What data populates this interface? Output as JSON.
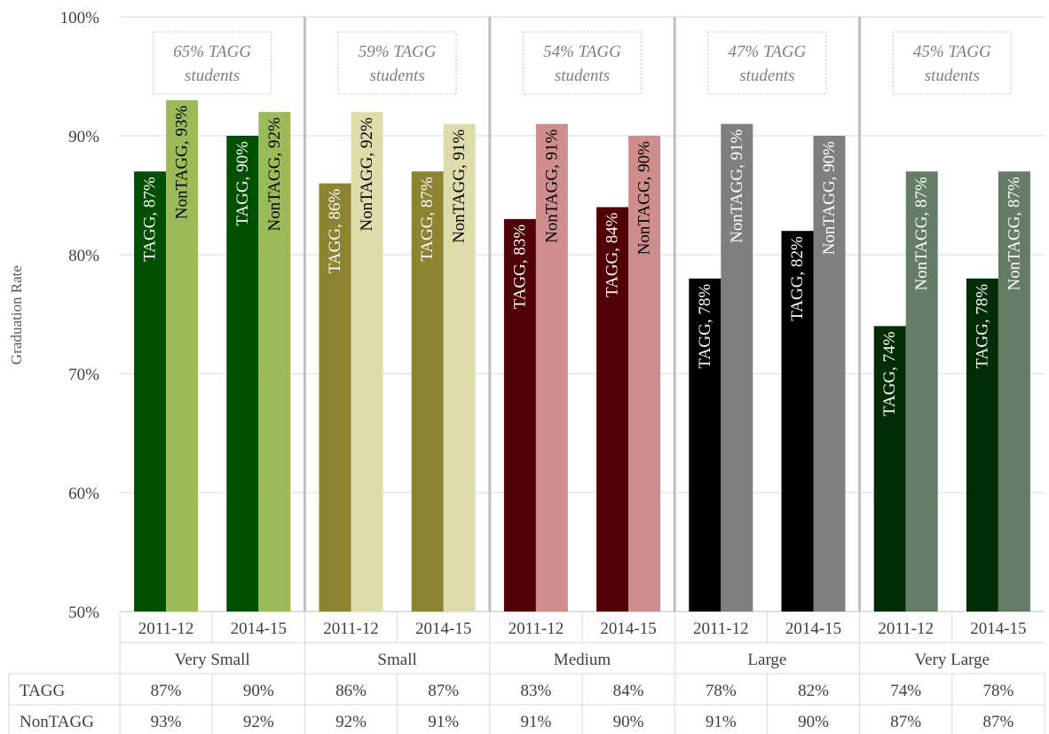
{
  "chart_data": {
    "type": "bar",
    "ylabel": "Graduation Rate",
    "ylim": [
      50,
      100
    ],
    "yticks": [
      50,
      60,
      70,
      80,
      90,
      100
    ],
    "ytick_suffix": "%",
    "grid": true,
    "groups": [
      {
        "name": "Very Small",
        "note": "65% TAGG students",
        "note_lines": [
          "65% TAGG",
          "students"
        ],
        "colors": {
          "TAGG": "#005000",
          "NonTAGG": "#9bbb59"
        },
        "years": [
          {
            "year": "2011-12",
            "TAGG": 87,
            "NonTAGG": 93
          },
          {
            "year": "2014-15",
            "TAGG": 90,
            "NonTAGG": 92
          }
        ]
      },
      {
        "name": "Small",
        "note": "59% TAGG students",
        "note_lines": [
          "59% TAGG",
          "students"
        ],
        "colors": {
          "TAGG": "#8c8430",
          "NonTAGG": "#dfdcac"
        },
        "years": [
          {
            "year": "2011-12",
            "TAGG": 86,
            "NonTAGG": 92
          },
          {
            "year": "2014-15",
            "TAGG": 87,
            "NonTAGG": 91
          }
        ]
      },
      {
        "name": "Medium",
        "note": "54% TAGG students",
        "note_lines": [
          "54% TAGG",
          "students"
        ],
        "colors": {
          "TAGG": "#500005",
          "NonTAGG": "#cf8e8d"
        },
        "years": [
          {
            "year": "2011-12",
            "TAGG": 83,
            "NonTAGG": 91
          },
          {
            "year": "2014-15",
            "TAGG": 84,
            "NonTAGG": 90
          }
        ]
      },
      {
        "name": "Large",
        "note": "47% TAGG students",
        "note_lines": [
          "47% TAGG",
          "students"
        ],
        "colors": {
          "TAGG": "#000000",
          "NonTAGG": "#7f7f7f"
        },
        "years": [
          {
            "year": "2011-12",
            "TAGG": 78,
            "NonTAGG": 91
          },
          {
            "year": "2014-15",
            "TAGG": 82,
            "NonTAGG": 90
          }
        ]
      },
      {
        "name": "Very Large",
        "note": "45% TAGG students",
        "note_lines": [
          "45% TAGG",
          "students"
        ],
        "colors": {
          "TAGG": "#002d05",
          "NonTAGG": "#657c66"
        },
        "years": [
          {
            "year": "2011-12",
            "TAGG": 74,
            "NonTAGG": 87
          },
          {
            "year": "2014-15",
            "TAGG": 78,
            "NonTAGG": 87
          }
        ]
      }
    ],
    "table": {
      "rows": [
        {
          "label": "TAGG",
          "values": [
            "87%",
            "90%",
            "86%",
            "87%",
            "83%",
            "84%",
            "78%",
            "82%",
            "74%",
            "78%"
          ]
        },
        {
          "label": "NonTAGG",
          "values": [
            "93%",
            "92%",
            "92%",
            "91%",
            "91%",
            "90%",
            "91%",
            "90%",
            "87%",
            "87%"
          ]
        }
      ]
    }
  }
}
